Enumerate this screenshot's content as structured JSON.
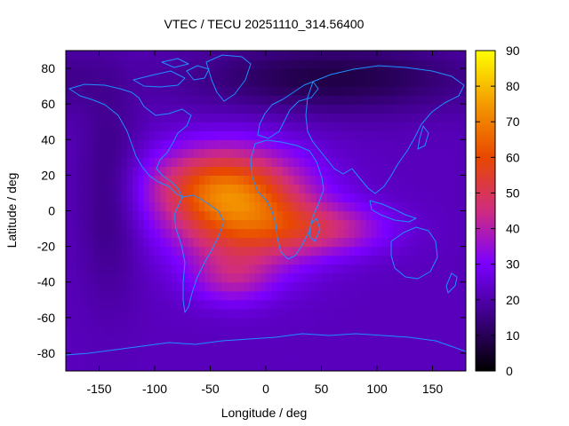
{
  "chart_data": {
    "type": "heatmap",
    "title": "VTEC / TECU 20251110_314.56400",
    "xlabel": "Longitude / deg",
    "ylabel": "Latitude / deg",
    "xlim": [
      -180,
      180
    ],
    "ylim": [
      -90,
      90
    ],
    "x_ticks": [
      -150,
      -100,
      -50,
      0,
      50,
      100,
      150
    ],
    "y_ticks": [
      80,
      60,
      40,
      20,
      0,
      -20,
      -40,
      -60,
      -80
    ],
    "colorbar": {
      "range": [
        0,
        90
      ],
      "ticks": [
        90,
        80,
        70,
        60,
        50,
        40,
        30,
        20,
        10,
        0
      ],
      "palette": [
        "#000000",
        "#3b0082",
        "#7a00ff",
        "#d02c80",
        "#e84800",
        "#f49a00",
        "#ffff00"
      ]
    },
    "field": {
      "description_units": "TECU",
      "background": 22,
      "anomalies": [
        {
          "lon": -20,
          "lat": 0,
          "amp": 40,
          "sx": 45,
          "sy": 22
        },
        {
          "lon": -55,
          "lat": 15,
          "amp": 20,
          "sx": 40,
          "sy": 15
        },
        {
          "lon": 55,
          "lat": -10,
          "amp": 18,
          "sx": 40,
          "sy": 10
        },
        {
          "lon": -30,
          "lat": -38,
          "amp": 12,
          "sx": 25,
          "sy": 10
        },
        {
          "lon": 60,
          "lat": 75,
          "amp": -14,
          "sx": 90,
          "sy": 14
        },
        {
          "lon": -140,
          "lat": 10,
          "amp": -8,
          "sx": 20,
          "sy": 40
        }
      ]
    },
    "coastline_color": "#1e90ff",
    "grid": false
  }
}
